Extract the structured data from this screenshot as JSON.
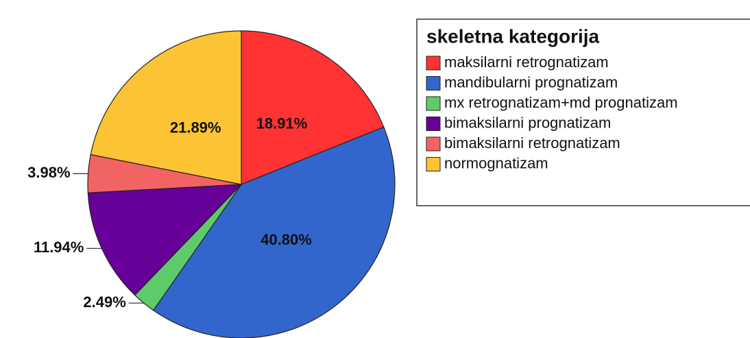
{
  "chart_data": {
    "type": "pie",
    "legend_title": "skeletna kategorija",
    "categories": [
      "maksilarni retrognatizam",
      "mandibularni prognatizam",
      "mx retrognatizam+md prognatizam",
      "bimaksilarni prognatizam",
      "bimaksilarni retrognatizam",
      "normognatizam"
    ],
    "values": [
      18.91,
      40.8,
      2.49,
      11.94,
      3.98,
      21.89
    ],
    "value_labels": [
      "18.91%",
      "40.80%",
      "2.49%",
      "11.94%",
      "3.98%",
      "21.89%"
    ],
    "colors": [
      "#ff3333",
      "#3366cc",
      "#5ecb6a",
      "#660099",
      "#f26464",
      "#fcc434"
    ],
    "legend": "right"
  }
}
